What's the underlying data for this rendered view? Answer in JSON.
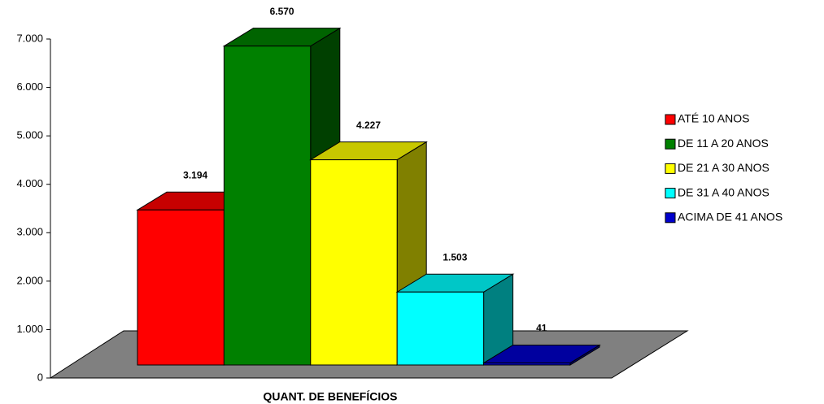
{
  "chart_data": {
    "type": "bar3d",
    "x_label": "QUANT. DE BENEFÍCIOS",
    "categories": [
      "QUANT. DE BENEFÍCIOS"
    ],
    "series": [
      {
        "name": "ATÉ 10 ANOS",
        "color": "#ff0000",
        "values": [
          3194
        ],
        "value_labels": [
          "3.194"
        ]
      },
      {
        "name": "DE 11 A 20 ANOS",
        "color": "#008000",
        "values": [
          6570
        ],
        "value_labels": [
          "6.570"
        ]
      },
      {
        "name": "DE 21 A 30 ANOS",
        "color": "#ffff00",
        "values": [
          4227
        ],
        "value_labels": [
          "4.227"
        ]
      },
      {
        "name": "DE 31 A 40 ANOS",
        "color": "#00ffff",
        "values": [
          1503
        ],
        "value_labels": [
          "1.503"
        ]
      },
      {
        "name": "ACIMA DE 41 ANOS",
        "color": "#0000cc",
        "values": [
          41
        ],
        "value_labels": [
          "41"
        ]
      }
    ],
    "ylim": [
      0,
      7000
    ],
    "yticks": [
      0,
      {
        "value": 1000,
        "label": "1.000"
      },
      {
        "value": 2000,
        "label": "2.000"
      },
      {
        "value": 3000,
        "label": "3.000"
      },
      {
        "value": 4000,
        "label": "4.000"
      },
      {
        "value": 5000,
        "label": "5.000"
      },
      {
        "value": 6000,
        "label": "6.000"
      },
      {
        "value": 7000,
        "label": "7.000"
      }
    ],
    "legend": "right"
  }
}
